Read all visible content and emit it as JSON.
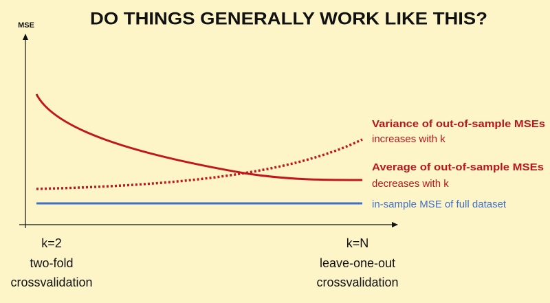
{
  "title": "DO THINGS GENERALLY WORK LIKE THIS?",
  "y_axis_label": "MSE",
  "annotations": [
    {
      "heading": "Variance of out-of-sample MSEs",
      "note": "increases with k"
    },
    {
      "heading": "Average of out-of-sample MSEs",
      "note": "decreases with k"
    },
    {
      "note": "in-sample MSE of full dataset"
    }
  ],
  "x_ends": [
    {
      "k": "k=2",
      "lines": [
        "two-fold",
        "crossvalidation"
      ]
    },
    {
      "k": "k=N",
      "lines": [
        "leave-one-out",
        "crossvalidation"
      ]
    }
  ]
}
